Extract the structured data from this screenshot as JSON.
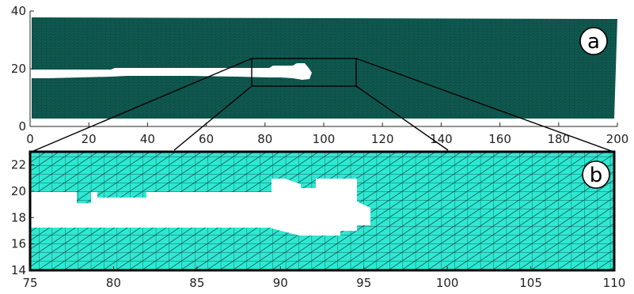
{
  "colors": {
    "mesh_fill_top": "#0f5c52",
    "mesh_fill_bottom": "#2ee8d2",
    "mesh_edge": "#0a3a34",
    "axis": "#262626",
    "frame": "#000000",
    "background": "#ffffff"
  },
  "chart_data": [
    {
      "type": "mesh",
      "panel": "a",
      "xlim": [
        0,
        200
      ],
      "ylim": [
        0,
        40
      ],
      "xticks": [
        "0",
        "20",
        "40",
        "60",
        "80",
        "100",
        "120",
        "140",
        "160",
        "180",
        "200"
      ],
      "yticks": [
        "0",
        "20",
        "40"
      ],
      "domain": {
        "x": [
          0,
          200
        ],
        "y": [
          2.5,
          37.5
        ]
      },
      "crack": {
        "x_end": 95,
        "y_range": [
          16.5,
          20.5
        ]
      },
      "zoom_box": {
        "x": [
          75,
          110
        ],
        "y": [
          14,
          23
        ]
      }
    },
    {
      "type": "mesh",
      "panel": "b",
      "xlim": [
        75,
        110
      ],
      "ylim": [
        14,
        23
      ],
      "xticks": [
        "75",
        "80",
        "85",
        "90",
        "95",
        "100",
        "105",
        "110"
      ],
      "yticks": [
        "14",
        "16",
        "18",
        "20",
        "22"
      ],
      "crack": {
        "x_end": 95.3,
        "y_range": [
          17.3,
          19.9
        ]
      }
    }
  ],
  "panels": {
    "a_label": "a",
    "b_label": "b"
  }
}
